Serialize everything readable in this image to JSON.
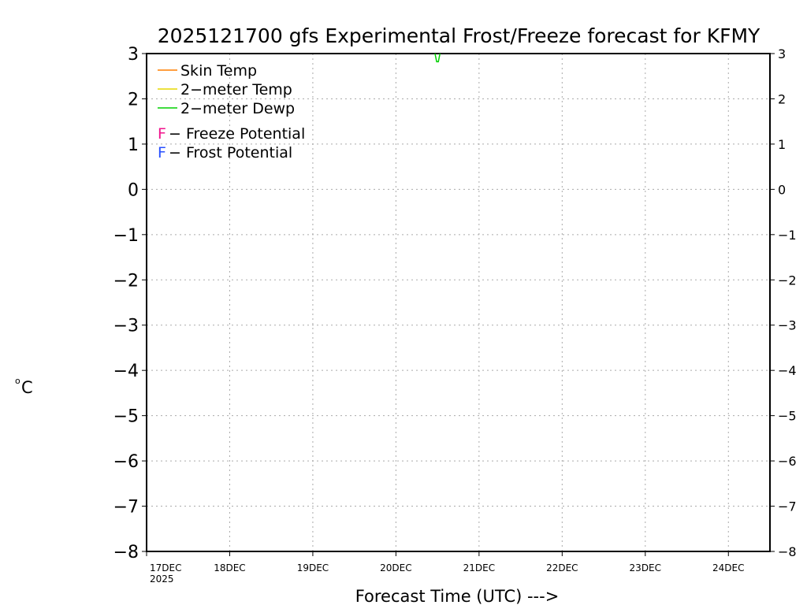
{
  "chart_data": {
    "type": "line",
    "title": "2025121700 gfs Experimental Frost/Freeze forecast for KFMY",
    "xlabel": "Forecast Time (UTC) --->",
    "ylabel": "°C",
    "ylabel_parts": {
      "degree": "o",
      "unit": "C"
    },
    "xlim": [
      0,
      7.5
    ],
    "ylim": [
      -8,
      3
    ],
    "yticks": [
      3,
      2,
      1,
      0,
      -1,
      -2,
      -3,
      -4,
      -5,
      -6,
      -7,
      -8
    ],
    "ytick_labels": [
      "3",
      "2",
      "1",
      "0",
      "−1",
      "−2",
      "−3",
      "−4",
      "−5",
      "−6",
      "−7",
      "−8"
    ],
    "xticks": [
      0,
      1,
      2,
      3,
      4,
      5,
      6,
      7
    ],
    "xtick_labels": [
      "17DEC",
      "18DEC",
      "19DEC",
      "20DEC",
      "21DEC",
      "22DEC",
      "23DEC",
      "24DEC"
    ],
    "xtick_year": "2025",
    "grid": true,
    "legend": {
      "placement": "top-left",
      "lines": [
        {
          "label": "Skin Temp",
          "color": "#ff7f00"
        },
        {
          "label": "2−meter Temp",
          "color": "#e6d800"
        },
        {
          "label": "2−meter Dewp",
          "color": "#00d000"
        }
      ],
      "markers": [
        {
          "symbol": "F",
          "label": " − Freeze Potential",
          "color": "#f0148c"
        },
        {
          "symbol": "F",
          "label": " − Frost Potential",
          "color": "#2850ff"
        }
      ]
    },
    "series": [
      {
        "name": "2-meter Dewp",
        "color": "#00d000",
        "x": [
          3.47,
          3.49,
          3.51,
          3.53
        ],
        "y": [
          3.0,
          2.82,
          2.82,
          3.0
        ]
      }
    ]
  }
}
